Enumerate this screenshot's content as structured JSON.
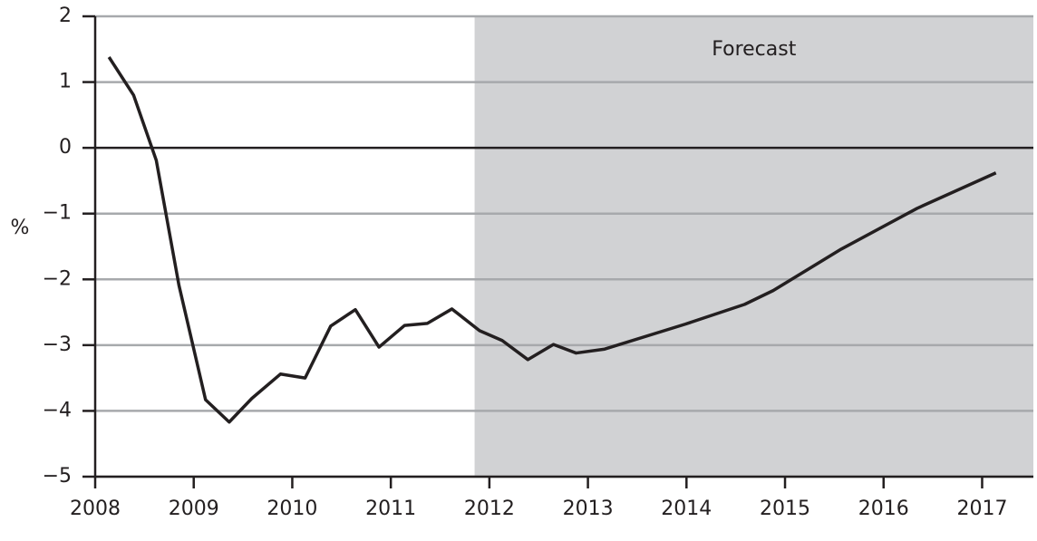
{
  "chart_data": {
    "type": "line",
    "y_label": "%",
    "annotation": "Forecast",
    "forecast_from": 2011.85,
    "forecast_color": "#d1d2d4",
    "x": [
      2008.14,
      2008.39,
      2008.62,
      2008.85,
      2009.12,
      2009.36,
      2009.59,
      2009.88,
      2010.13,
      2010.39,
      2010.64,
      2010.88,
      2011.14,
      2011.37,
      2011.62,
      2011.9,
      2012.13,
      2012.39,
      2012.65,
      2012.88,
      2013.17,
      2013.99,
      2014.59,
      2014.88,
      2015.57,
      2016.34,
      2017.14
    ],
    "series": [
      {
        "color": "#231f20",
        "values": [
          1.38,
          0.8,
          -0.19,
          -2.09,
          -3.83,
          -4.17,
          -3.81,
          -3.44,
          -3.5,
          -2.71,
          -2.46,
          -3.03,
          -2.7,
          -2.67,
          -2.45,
          -2.78,
          -2.93,
          -3.22,
          -2.99,
          -3.12,
          -3.06,
          -2.68,
          -2.38,
          -2.17,
          -1.54,
          -0.92,
          -0.38
        ]
      }
    ],
    "xlim": [
      2008,
      2017.52
    ],
    "xticks": [
      2008,
      2009,
      2010,
      2011,
      2012,
      2013,
      2014,
      2015,
      2016,
      2017
    ],
    "ylim": [
      -5,
      2
    ],
    "yticks": [
      {
        "value": -5,
        "label": "−5"
      },
      {
        "value": -4,
        "label": "−4"
      },
      {
        "value": -3,
        "label": "−3"
      },
      {
        "value": -2,
        "label": "−2"
      },
      {
        "value": -1,
        "label": "−1"
      },
      0,
      1,
      2
    ],
    "grid": true
  }
}
